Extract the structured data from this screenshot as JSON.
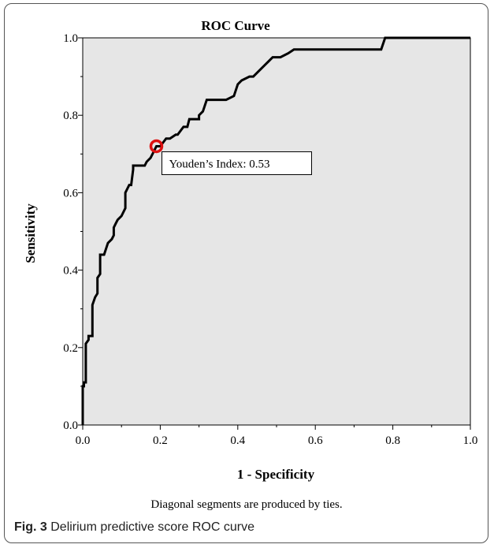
{
  "chart_data": {
    "type": "line",
    "title": "ROC Curve",
    "xlabel": "1 - Specificity",
    "ylabel": "Sensitivity",
    "xlim": [
      0,
      1
    ],
    "ylim": [
      0,
      1
    ],
    "x_ticks": [
      "0.0",
      "0.2",
      "0.4",
      "0.6",
      "0.8",
      "1.0"
    ],
    "y_ticks": [
      "0.0",
      "0.2",
      "0.4",
      "0.6",
      "0.8",
      "1.0"
    ],
    "grid": false,
    "background": "#e6e6e6",
    "curve_color": "#000000",
    "highlight_color": "#dd1111",
    "series": [
      {
        "x": [
          0,
          0,
          0.003,
          0.003,
          0.008,
          0.008,
          0.015,
          0.015,
          0.025,
          0.025,
          0.032,
          0.038,
          0.038,
          0.045,
          0.045,
          0.055,
          0.065,
          0.075,
          0.08,
          0.08,
          0.085,
          0.09,
          0.1,
          0.11,
          0.11,
          0.12,
          0.125,
          0.13,
          0.13,
          0.14,
          0.14,
          0.15,
          0.16,
          0.165,
          0.175,
          0.18,
          0.19,
          0.2,
          0.215,
          0.225,
          0.24,
          0.245,
          0.26,
          0.265,
          0.27,
          0.275,
          0.3,
          0.3,
          0.31,
          0.32,
          0.35,
          0.37,
          0.39,
          0.4,
          0.41,
          0.43,
          0.44,
          0.45,
          0.46,
          0.47,
          0.48,
          0.49,
          0.51,
          0.53,
          0.545,
          0.56,
          0.57,
          0.6,
          0.65,
          0.7,
          0.77,
          0.77,
          0.78,
          0.8,
          0.9,
          1.0
        ],
        "y": [
          0,
          0.1,
          0.1,
          0.11,
          0.11,
          0.21,
          0.22,
          0.23,
          0.23,
          0.31,
          0.33,
          0.34,
          0.38,
          0.39,
          0.44,
          0.44,
          0.47,
          0.48,
          0.49,
          0.51,
          0.52,
          0.53,
          0.54,
          0.56,
          0.6,
          0.62,
          0.62,
          0.66,
          0.67,
          0.67,
          0.67,
          0.67,
          0.67,
          0.68,
          0.69,
          0.7,
          0.72,
          0.72,
          0.74,
          0.74,
          0.75,
          0.75,
          0.77,
          0.77,
          0.77,
          0.79,
          0.79,
          0.8,
          0.81,
          0.84,
          0.84,
          0.84,
          0.85,
          0.88,
          0.89,
          0.9,
          0.9,
          0.91,
          0.92,
          0.93,
          0.94,
          0.95,
          0.95,
          0.96,
          0.97,
          0.97,
          0.97,
          0.97,
          0.97,
          0.97,
          0.97,
          0.97,
          1.0,
          1.0,
          1.0,
          1.0
        ]
      }
    ],
    "highlight_point": {
      "x": 0.19,
      "y": 0.72
    },
    "annotation": "Youden’s Index: 0.53",
    "footnote": "Diagonal segments are produced by ties."
  },
  "caption": {
    "label": "Fig. 3",
    "text": "Delirium predictive score ROC curve"
  }
}
